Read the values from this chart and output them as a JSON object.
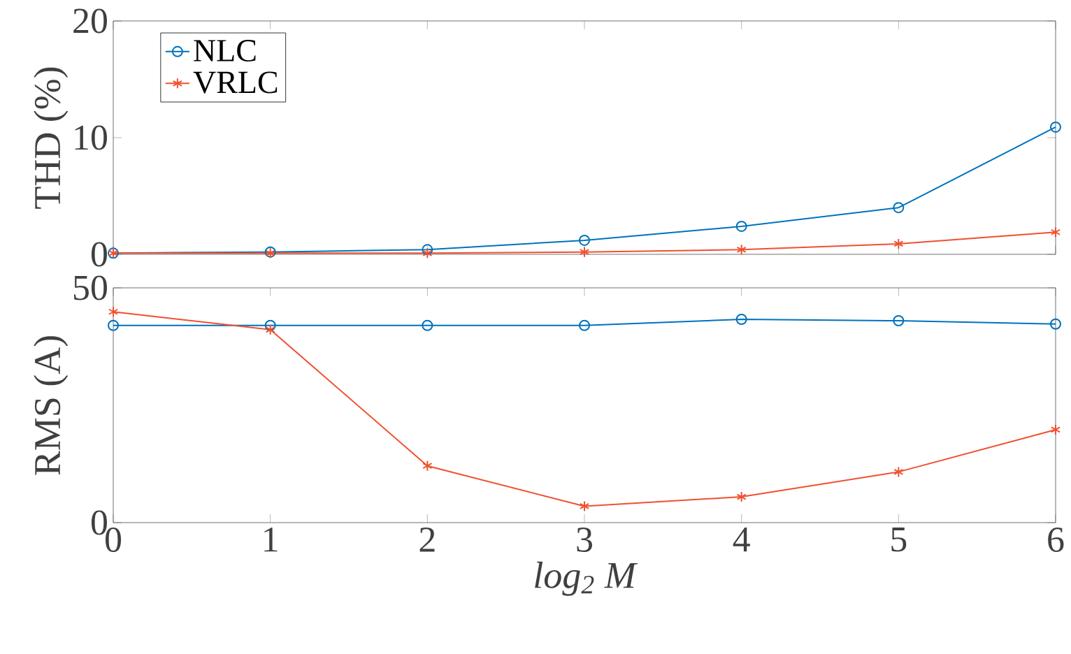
{
  "chart_data": [
    {
      "type": "line",
      "ylabel": "THD (%)",
      "x": [
        0,
        1,
        2,
        3,
        4,
        5,
        6
      ],
      "xlim": [
        0,
        6
      ],
      "xticks": [
        0,
        1,
        2,
        3,
        4,
        5,
        6
      ],
      "ylim": [
        0,
        20
      ],
      "yticks": [
        0,
        10,
        20
      ],
      "tick_labels": "y",
      "legend": "top left",
      "grid": false,
      "line_style": "solid",
      "series": [
        {
          "name": "NLC",
          "color": "#0072bd",
          "marker": "circle",
          "values": [
            0.1,
            0.2,
            0.4,
            1.2,
            2.4,
            4.0,
            10.9
          ]
        },
        {
          "name": "VRLC",
          "color": "#f0502f",
          "marker": "cross",
          "values": [
            0.1,
            0.1,
            0.1,
            0.2,
            0.4,
            0.9,
            1.9
          ]
        }
      ]
    },
    {
      "type": "line",
      "ylabel": "RMS (A)",
      "xlabel": "log$_{2}$ M",
      "x": [
        0,
        1,
        2,
        3,
        4,
        5,
        6
      ],
      "xlim": [
        0,
        6
      ],
      "xticks": [
        0,
        1,
        2,
        3,
        4,
        5,
        6
      ],
      "ylim": [
        0,
        50
      ],
      "yticks": [
        0,
        50
      ],
      "grid": false,
      "line_style": "solid",
      "series": [
        {
          "color": "#0072bd",
          "marker": "circle",
          "values": [
            42.0,
            42.0,
            42.0,
            42.0,
            43.3,
            43.0,
            42.3
          ]
        },
        {
          "color": "#f0502f",
          "marker": "cross",
          "values": [
            44.9,
            41.1,
            12.1,
            3.5,
            5.5,
            10.8,
            19.8
          ]
        }
      ]
    }
  ]
}
